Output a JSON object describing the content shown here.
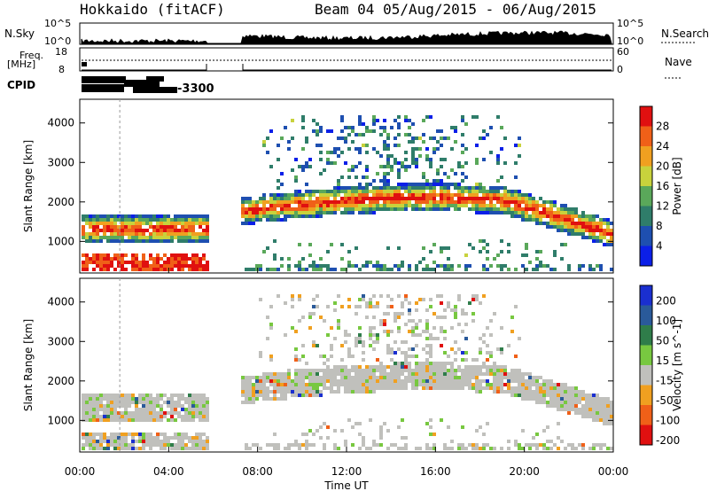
{
  "header": {
    "title": "Hokkaido (fitACF)",
    "subtitle": "Beam 04 05/Aug/2015 - 06/Aug/2015"
  },
  "top_panels": {
    "nsky_label": "N.Sky",
    "nsky_ticks": [
      "10^5",
      "10^0"
    ],
    "nsearch_label": "N.Search",
    "freq_label_1": "Freq.",
    "freq_label_2": "[MHz]",
    "freq_ticks": [
      "18",
      "8"
    ],
    "nave_ticks": [
      "60",
      "0"
    ],
    "nave_label": "Nave",
    "cpid_label": "CPID",
    "cpid_value": "-3300"
  },
  "chart_data": [
    {
      "type": "heatmap",
      "name": "power",
      "ylabel": "Slant Range [km]",
      "ylim": [
        200,
        4600
      ],
      "yticks": [
        1000,
        2000,
        3000,
        4000
      ],
      "xlim": [
        0,
        24
      ],
      "xlabel": "Time UT",
      "xticks": [
        "00:00",
        "04:00",
        "08:00",
        "12:00",
        "16:00",
        "20:00",
        "00:00"
      ],
      "colorbar_label": "Power [dB]",
      "colorbar_ticks": [
        "4",
        "8",
        "12",
        "16",
        "20",
        "24",
        "28"
      ],
      "colors": [
        "#0b1fe8",
        "#1e4fb0",
        "#2f7d6a",
        "#5aa85a",
        "#c8d23c",
        "#f0a020",
        "#f06018",
        "#e01010"
      ],
      "data_gap_hours": [
        5.75,
        7.25
      ]
    },
    {
      "type": "heatmap",
      "name": "velocity",
      "ylabel": "Slant Range [km]",
      "ylim": [
        200,
        4600
      ],
      "yticks": [
        1000,
        2000,
        3000,
        4000
      ],
      "xlim": [
        0,
        24
      ],
      "xlabel": "Time UT",
      "xticks": [
        "00:00",
        "04:00",
        "08:00",
        "12:00",
        "16:00",
        "20:00",
        "00:00"
      ],
      "colorbar_label": "Velocity [m s^-1]",
      "colorbar_ticks": [
        "200",
        "100",
        "50",
        "15",
        "-15",
        "-50",
        "-100",
        "-200"
      ],
      "colors": [
        "#1a2fd0",
        "#2a5a9a",
        "#2f7d4a",
        "#78c840",
        "#c0c0bc",
        "#f0a020",
        "#f06018",
        "#e01010"
      ],
      "data_gap_hours": [
        5.75,
        7.25
      ]
    }
  ]
}
